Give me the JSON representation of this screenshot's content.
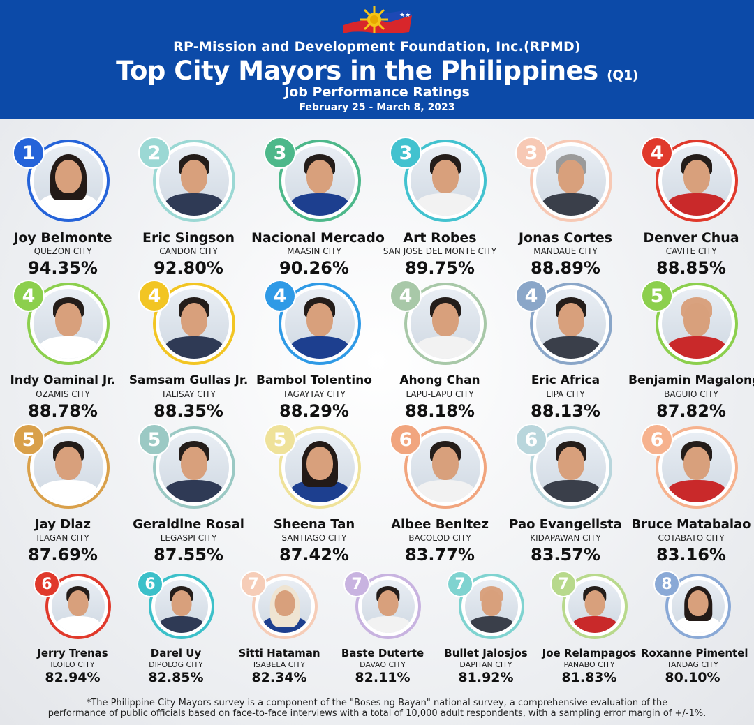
{
  "header": {
    "organization": "RP-Mission and Development Foundation, Inc.(RPMD)",
    "title": "Top City Mayors in the Philippines",
    "quarter": "(Q1)",
    "subtitle": "Job Performance Ratings",
    "dates": "February 25 - March 8, 2023"
  },
  "colors": {
    "header_bg": "#0c4aa8",
    "rank_1": "#2563d9",
    "rank_2": "#9bd8d4",
    "rank_3_a": "#4db88a",
    "rank_3_b": "#42c2cf",
    "rank_3_c": "#f7c9b5",
    "rank_4_red": "#e0392b",
    "rank_4_green": "#8ccf4d",
    "rank_4_yellow": "#f2c523",
    "rank_4_blue": "#2f9ae6",
    "rank_4_sage": "#a8c8a8",
    "rank_4_slate": "#8aa6c8",
    "rank_5_green": "#8ccf4d",
    "rank_5_orange": "#d9a04a",
    "rank_5_teal": "#9bc9c4",
    "rank_5_cream": "#efe29a",
    "rank_6_salmon": "#f1a57e",
    "rank_6_pale": "#b9d6dc",
    "rank_6_peach": "#f6b28e",
    "rank_6_red": "#e0392b",
    "rank_6_teal": "#3cc0c9",
    "rank_7_peach": "#f6cdb8",
    "rank_7_lavender": "#c8b3e0",
    "rank_7_aqua": "#7fd3d0",
    "rank_7_lime": "#b8d98c",
    "rank_8_blue": "#8aa9d6"
  },
  "mayors": [
    {
      "rank": "1",
      "name": "Joy Belmonte",
      "city": "QUEZON CITY",
      "rating": "94.35%",
      "color": "#2563d9",
      "hair": "long-dark-hair"
    },
    {
      "rank": "2",
      "name": "Eric Singson",
      "city": "CANDON CITY",
      "rating": "92.80%",
      "color": "#9bd8d4",
      "hair": "short-dark-hair"
    },
    {
      "rank": "3",
      "name": "Nacional Mercado",
      "city": "MAASIN CITY",
      "rating": "90.26%",
      "color": "#4db88a",
      "hair": "short-dark-hair"
    },
    {
      "rank": "3",
      "name": "Art Robes",
      "city": "SAN JOSE DEL MONTE CITY",
      "rating": "89.75%",
      "color": "#42c2cf",
      "hair": "short-dark-hair"
    },
    {
      "rank": "3",
      "name": "Jonas Cortes",
      "city": "MANDAUE CITY",
      "rating": "88.89%",
      "color": "#f7c9b5",
      "hair": "gray-hair"
    },
    {
      "rank": "4",
      "name": "Denver Chua",
      "city": "CAVITE CITY",
      "rating": "88.85%",
      "color": "#e0392b",
      "hair": "short-dark-hair"
    },
    {
      "rank": "4",
      "name": "Indy Oaminal Jr.",
      "city": "OZAMIS CITY",
      "rating": "88.78%",
      "color": "#8ccf4d",
      "hair": "short-dark-hair"
    },
    {
      "rank": "4",
      "name": "Samsam Gullas Jr.",
      "city": "TALISAY CITY",
      "rating": "88.35%",
      "color": "#f2c523",
      "hair": "short-dark-hair"
    },
    {
      "rank": "4",
      "name": "Bambol Tolentino",
      "city": "TAGAYTAY CITY",
      "rating": "88.29%",
      "color": "#2f9ae6",
      "hair": "short-dark-hair"
    },
    {
      "rank": "4",
      "name": "Ahong Chan",
      "city": "LAPU-LAPU CITY",
      "rating": "88.18%",
      "color": "#a8c8a8",
      "hair": "short-dark-hair"
    },
    {
      "rank": "4",
      "name": "Eric Africa",
      "city": "LIPA CITY",
      "rating": "88.13%",
      "color": "#8aa6c8",
      "hair": "short-dark-hair"
    },
    {
      "rank": "5",
      "name": "Benjamin Magalong",
      "city": "BAGUIO CITY",
      "rating": "87.82%",
      "color": "#8ccf4d",
      "hair": "bald"
    },
    {
      "rank": "5",
      "name": "Jay Diaz",
      "city": "ILAGAN CITY",
      "rating": "87.69%",
      "color": "#d9a04a",
      "hair": "short-dark-hair"
    },
    {
      "rank": "5",
      "name": "Geraldine Rosal",
      "city": "LEGASPI CITY",
      "rating": "87.55%",
      "color": "#9bc9c4",
      "hair": "short-dark-hair"
    },
    {
      "rank": "5",
      "name": "Sheena Tan",
      "city": "SANTIAGO CITY",
      "rating": "87.42%",
      "color": "#efe29a",
      "hair": "long-dark-hair"
    },
    {
      "rank": "6",
      "name": "Albee Benitez",
      "city": "BACOLOD CITY",
      "rating": "83.77%",
      "color": "#f1a57e",
      "hair": "short-dark-hair"
    },
    {
      "rank": "6",
      "name": "Pao Evangelista",
      "city": "KIDAPAWAN CITY",
      "rating": "83.57%",
      "color": "#b9d6dc",
      "hair": "short-dark-hair"
    },
    {
      "rank": "6",
      "name": "Bruce Matabalao",
      "city": "COTABATO CITY",
      "rating": "83.16%",
      "color": "#f6b28e",
      "hair": "short-dark-hair"
    },
    {
      "rank": "6",
      "name": "Jerry Trenas",
      "city": "ILOILO CITY",
      "rating": "82.94%",
      "color": "#e0392b",
      "hair": "short-dark-hair"
    },
    {
      "rank": "6",
      "name": "Darel Uy",
      "city": "DIPOLOG CITY",
      "rating": "82.85%",
      "color": "#3cc0c9",
      "hair": "short-dark-hair"
    },
    {
      "rank": "7",
      "name": "Sitti Hataman",
      "city": "ISABELA CITY",
      "rating": "82.34%",
      "color": "#f6cdb8",
      "hair": "hijab"
    },
    {
      "rank": "7",
      "name": "Baste Duterte",
      "city": "DAVAO CITY",
      "rating": "82.11%",
      "color": "#c8b3e0",
      "hair": "short-dark-hair"
    },
    {
      "rank": "7",
      "name": "Bullet Jalosjos",
      "city": "DAPITAN CITY",
      "rating": "81.92%",
      "color": "#7fd3d0",
      "hair": "bald"
    },
    {
      "rank": "7",
      "name": "Joe Relampagos",
      "city": "PANABO CITY",
      "rating": "81.83%",
      "color": "#b8d98c",
      "hair": "short-dark-hair"
    },
    {
      "rank": "8",
      "name": "Roxanne Pimentel",
      "city": "TANDAG CITY",
      "rating": "80.10%",
      "color": "#8aa9d6",
      "hair": "long-dark-hair"
    }
  ],
  "footnote": {
    "line1": "*The Philippine City Mayors survey is a component of the \"Boses ng Bayan\" national survey, a comprehensive evaluation of the",
    "line2": "performance of public officials based on face-to-face interviews with a total of 10,000 adult respondents, with a sampling error margin of +/-1%."
  }
}
